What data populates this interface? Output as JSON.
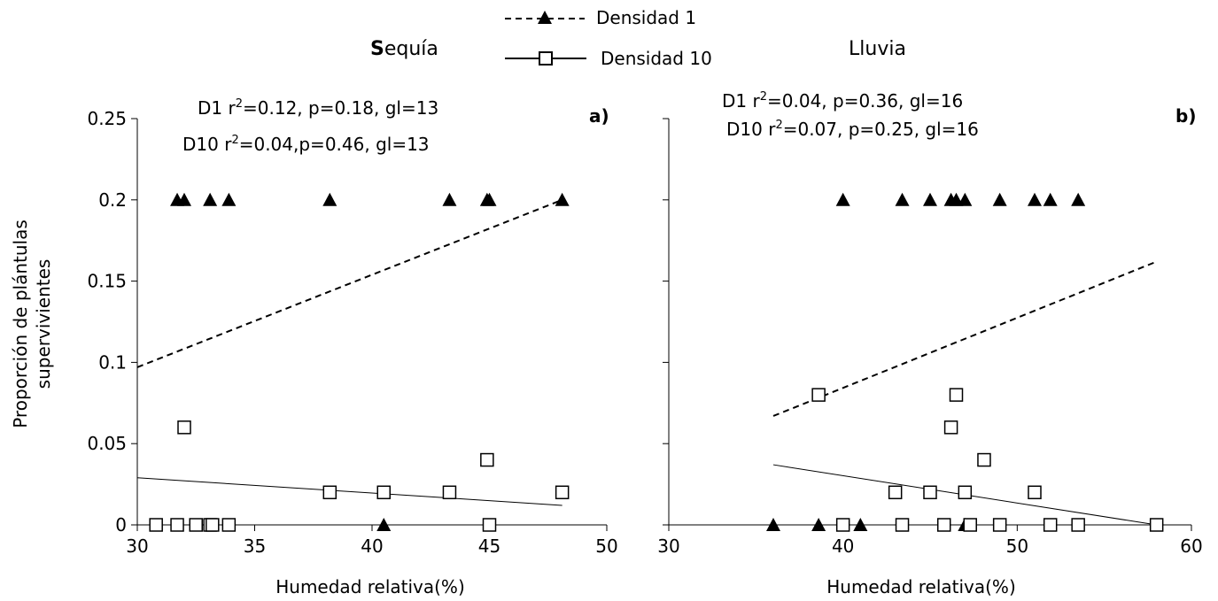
{
  "legend": {
    "series1": "Densidad 1",
    "series2": "Densidad 10"
  },
  "ylabel_line1": "Proporción de plántulas",
  "ylabel_line2": "supervivientes",
  "chart_data": [
    {
      "type": "scatter",
      "title": "Sequía",
      "title_bold_prefix": "S",
      "title_rest": "equía",
      "panel_label": "a)",
      "stats": [
        {
          "prefix": "D1 r",
          "sup": "2",
          "rest": "=0.12, p=0.18, gl=13"
        },
        {
          "prefix": "D10 r",
          "sup": "2",
          "rest": "=0.04,p=0.46, gl=13"
        }
      ],
      "xlabel": "Humedad relativa(%)",
      "ylabel": "Proporción de plántulas supervivientes",
      "xlim": [
        30,
        50
      ],
      "ylim": [
        0,
        0.25
      ],
      "xticks": [
        "30",
        "35",
        "40",
        "45",
        "50"
      ],
      "yticks": [
        "0",
        "0.05",
        "0.1",
        "0.15",
        "0.2",
        "0.25"
      ],
      "grid": false,
      "series": [
        {
          "name": "Densidad 1",
          "marker": "filled-triangle",
          "points": [
            [
              31.7,
              0.2
            ],
            [
              32.0,
              0.2
            ],
            [
              33.1,
              0.2
            ],
            [
              33.9,
              0.2
            ],
            [
              38.2,
              0.2
            ],
            [
              43.3,
              0.2
            ],
            [
              44.9,
              0.2
            ],
            [
              45.0,
              0.2
            ],
            [
              48.1,
              0.2
            ],
            [
              40.5,
              0.0
            ]
          ],
          "trend": {
            "style": "dashed",
            "from": [
              30,
              0.097
            ],
            "to": [
              48.1,
              0.2
            ]
          }
        },
        {
          "name": "Densidad 10",
          "marker": "open-square",
          "points": [
            [
              30.8,
              0
            ],
            [
              31.7,
              0
            ],
            [
              32.5,
              0
            ],
            [
              33.1,
              0
            ],
            [
              33.2,
              0
            ],
            [
              33.9,
              0
            ],
            [
              45.0,
              0
            ],
            [
              32.0,
              0.06
            ],
            [
              38.2,
              0.02
            ],
            [
              40.5,
              0.02
            ],
            [
              43.3,
              0.02
            ],
            [
              44.9,
              0.04
            ],
            [
              48.1,
              0.02
            ]
          ],
          "trend": {
            "style": "solid",
            "from": [
              30,
              0.029
            ],
            "to": [
              48.1,
              0.012
            ]
          }
        }
      ]
    },
    {
      "type": "scatter",
      "title": "Lluvia",
      "panel_label": "b)",
      "stats": [
        {
          "prefix": "D1 r",
          "sup": "2",
          "rest": "=0.04, p=0.36, gl=16"
        },
        {
          "prefix": "D10 r",
          "sup": "2",
          "rest": "=0.07, p=0.25, gl=16"
        }
      ],
      "xlabel": "Humedad relativa(%)",
      "xlim": [
        30,
        60
      ],
      "ylim": [
        0,
        0.25
      ],
      "xticks": [
        "30",
        "40",
        "50",
        "60"
      ],
      "grid": false,
      "series": [
        {
          "name": "Densidad 1",
          "marker": "filled-triangle",
          "points": [
            [
              40.0,
              0.2
            ],
            [
              43.4,
              0.2
            ],
            [
              45.0,
              0.2
            ],
            [
              46.2,
              0.2
            ],
            [
              46.5,
              0.2
            ],
            [
              47.0,
              0.2
            ],
            [
              49.0,
              0.2
            ],
            [
              51.0,
              0.2
            ],
            [
              51.9,
              0.2
            ],
            [
              53.5,
              0.2
            ],
            [
              36.0,
              0.0
            ],
            [
              38.6,
              0.0
            ],
            [
              41.0,
              0.0
            ],
            [
              47.0,
              0.0
            ]
          ],
          "trend": {
            "style": "dashed",
            "from": [
              36.0,
              0.067
            ],
            "to": [
              58.0,
              0.162
            ]
          }
        },
        {
          "name": "Densidad 10",
          "marker": "open-square",
          "points": [
            [
              38.6,
              0.08
            ],
            [
              46.2,
              0.06
            ],
            [
              46.5,
              0.08
            ],
            [
              48.1,
              0.04
            ],
            [
              43.0,
              0.02
            ],
            [
              45.0,
              0.02
            ],
            [
              47.0,
              0.02
            ],
            [
              51.0,
              0.02
            ],
            [
              40.0,
              0
            ],
            [
              43.4,
              0
            ],
            [
              45.8,
              0
            ],
            [
              47.3,
              0
            ],
            [
              49.0,
              0
            ],
            [
              51.9,
              0
            ],
            [
              53.5,
              0
            ],
            [
              58.0,
              0
            ]
          ],
          "trend": {
            "style": "solid",
            "from": [
              36.0,
              0.037
            ],
            "to": [
              58.0,
              0.0
            ]
          }
        }
      ]
    }
  ]
}
